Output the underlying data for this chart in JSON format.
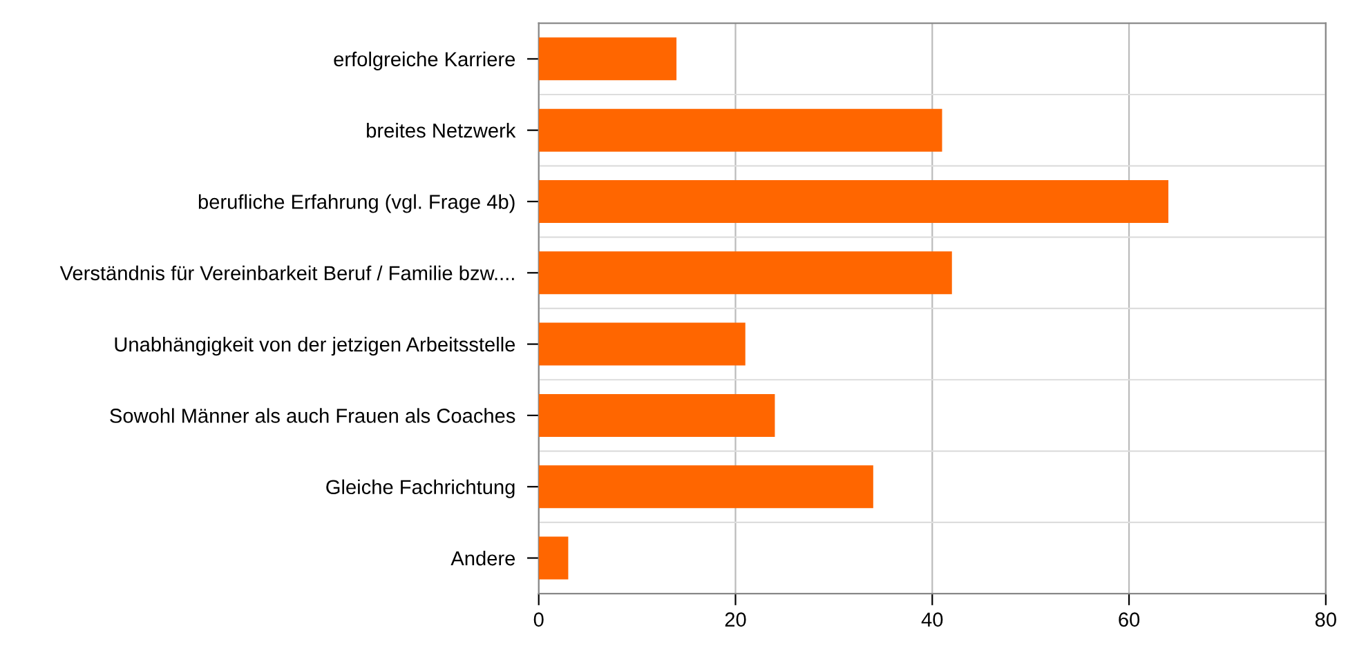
{
  "chart_data": {
    "type": "bar",
    "orientation": "horizontal",
    "categories": [
      "erfolgreiche Karriere",
      "breites Netzwerk",
      "berufliche Erfahrung (vgl. Frage 4b)",
      "Verständnis für Vereinbarkeit Beruf / Familie bzw....",
      "Unabhängigkeit von der jetzigen Arbeitsstelle",
      "Sowohl Männer als auch Frauen als Coaches",
      "Gleiche Fachrichtung",
      "Andere"
    ],
    "values": [
      14,
      41,
      64,
      42,
      21,
      24,
      34,
      3
    ],
    "color": "#ff6600",
    "xlim": [
      0,
      80
    ],
    "xticks": [
      0,
      20,
      40,
      60,
      80
    ],
    "grid": true,
    "legend": false
  }
}
